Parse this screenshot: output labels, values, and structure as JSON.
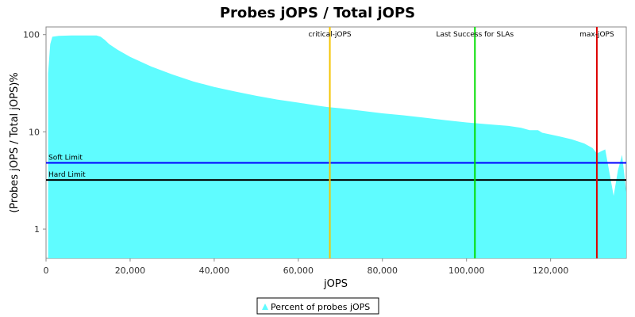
{
  "chart_data": {
    "type": "area",
    "title": "Probes jOPS / Total jOPS",
    "xlabel": "jOPS",
    "ylabel": "(Probes jOPS / Total jOPS)%",
    "x_ticks": [
      0,
      20000,
      40000,
      60000,
      80000,
      100000,
      120000
    ],
    "x_tick_labels": [
      "0",
      "20,000",
      "40,000",
      "60,000",
      "80,000",
      "100,000",
      "120,000"
    ],
    "y_ticks": [
      1,
      10,
      100
    ],
    "y_tick_labels": [
      "1",
      "10",
      "100"
    ],
    "y_scale": "log",
    "xlim": [
      0,
      138000
    ],
    "ylim": [
      0.5,
      120
    ],
    "legend_position": "bottom",
    "series": [
      {
        "name": "Percent of probes jOPS",
        "color": "#5ffcff",
        "x": [
          500,
          1000,
          1500,
          3000,
          6000,
          9000,
          12000,
          13000,
          14000,
          15000,
          17000,
          20000,
          25000,
          30000,
          35000,
          40000,
          45000,
          50000,
          55000,
          60000,
          65000,
          67000,
          70000,
          75000,
          80000,
          85000,
          90000,
          95000,
          100000,
          105000,
          110000,
          113000,
          115000,
          117000,
          118000,
          120000,
          122000,
          125000,
          128000,
          130000,
          131000,
          132000,
          133000,
          134000,
          135000,
          136000,
          137000,
          138000
        ],
        "y": [
          40,
          80,
          95,
          97,
          98,
          98,
          98,
          95,
          88,
          80,
          70,
          59,
          47,
          39,
          33,
          29,
          26,
          23.5,
          21.5,
          20,
          18.5,
          18,
          17.5,
          16.5,
          15.5,
          14.8,
          14,
          13.2,
          12.5,
          12,
          11.5,
          11,
          10.4,
          10.4,
          9.8,
          9.4,
          9,
          8.4,
          7.6,
          6.8,
          6.0,
          6.3,
          6.6,
          3.8,
          2.2,
          4.0,
          5.8,
          2.4
        ]
      }
    ],
    "horizontal_lines": [
      {
        "label": "Soft Limit",
        "y": 4.8,
        "color": "#0000ff"
      },
      {
        "label": "Hard Limit",
        "y": 3.2,
        "color": "#000000"
      }
    ],
    "vertical_lines": [
      {
        "label": "critical-jOPS",
        "x": 67500,
        "color": "#f5c400"
      },
      {
        "label": "Last Success for SLAs",
        "x": 102000,
        "color": "#00dd00"
      },
      {
        "label": "max-jOPS",
        "x": 131000,
        "color": "#dd0000"
      }
    ]
  }
}
